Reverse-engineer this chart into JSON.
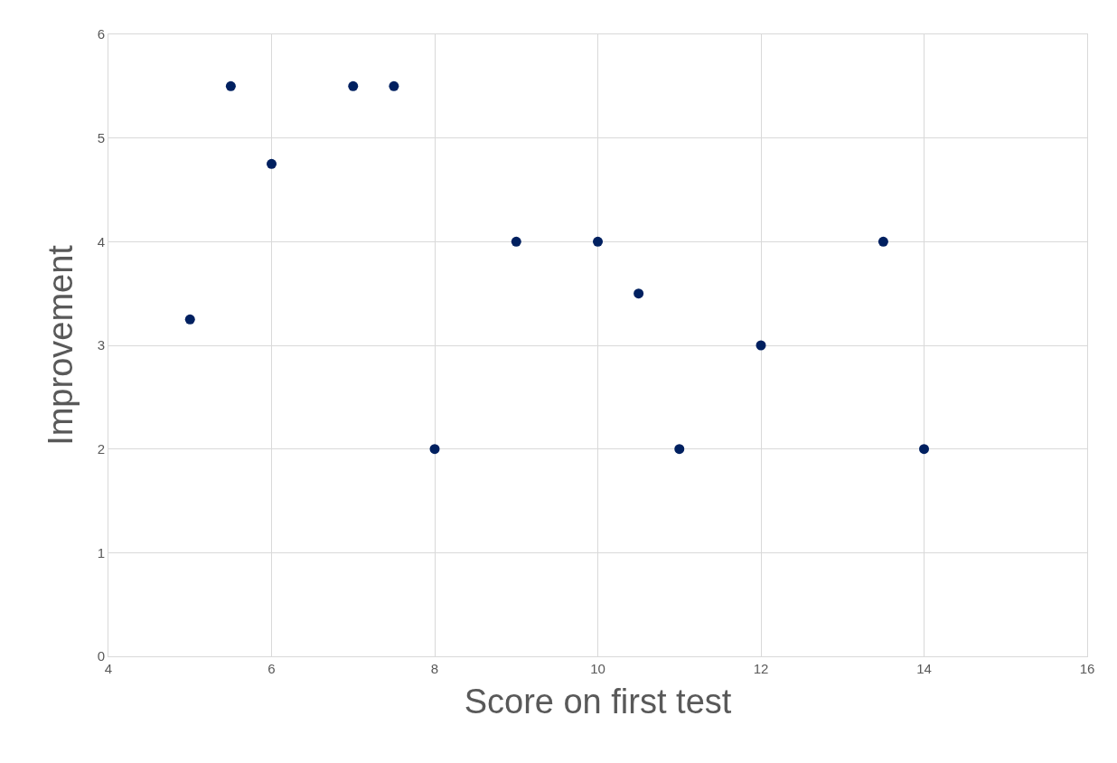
{
  "chart_data": {
    "type": "scatter",
    "xlabel": "Score on first test",
    "ylabel": "Improvement",
    "x": [
      5,
      5.5,
      6,
      7,
      7.5,
      8,
      9,
      10,
      10.5,
      11,
      12,
      13.5,
      14
    ],
    "series": [
      {
        "color": "#002060",
        "values": [
          3.25,
          5.5,
          4.75,
          5.5,
          5.5,
          2,
          4,
          4,
          3.5,
          2,
          3,
          4,
          2
        ]
      }
    ],
    "xlim": [
      4,
      16
    ],
    "xticks": [
      4,
      6,
      8,
      10,
      12,
      14,
      16
    ],
    "ylim": [
      0,
      6
    ],
    "yticks": [
      0,
      1,
      2,
      3,
      4,
      5,
      6
    ],
    "grid": true,
    "marker": "circle"
  }
}
